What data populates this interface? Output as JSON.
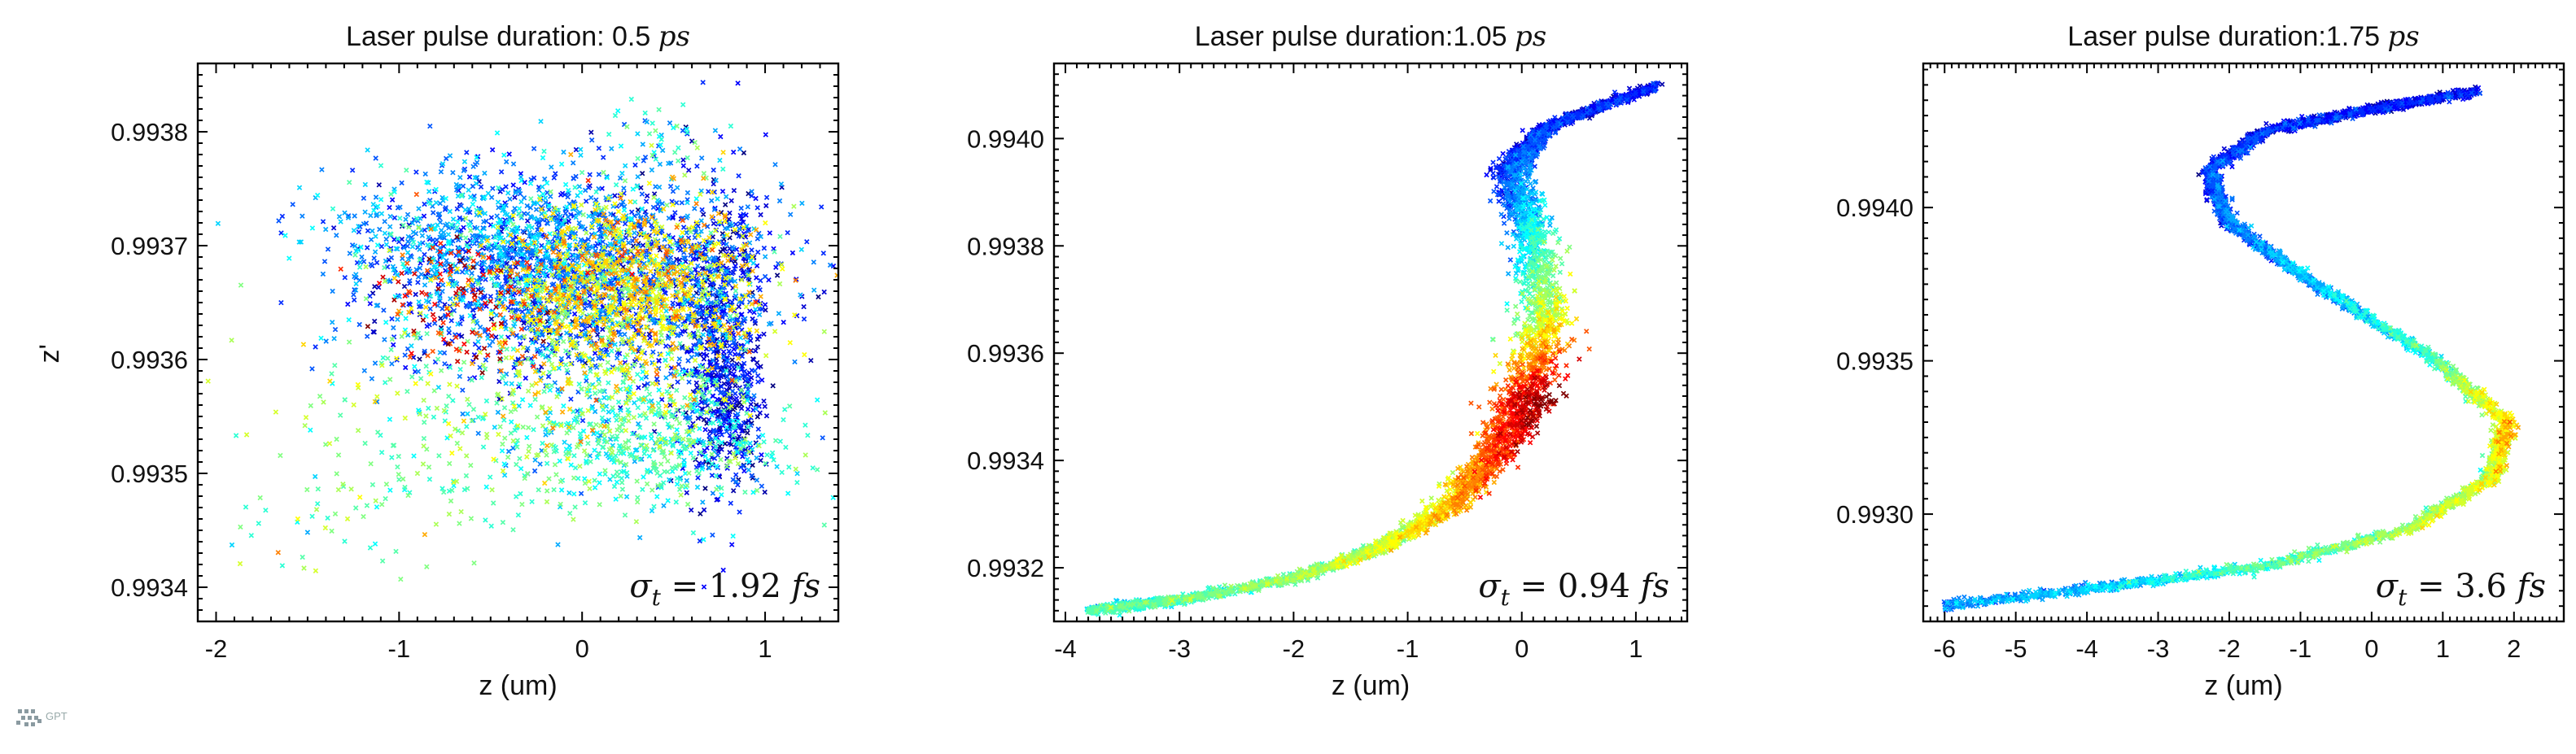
{
  "logo": {
    "text": "GPT"
  },
  "chart_data": [
    {
      "type": "scatter",
      "title": "Laser pulse duration: 0.5",
      "title_unit": "ps",
      "xlabel": "z (um)",
      "ylabel": "z'",
      "xlim": [
        -2.1,
        1.4
      ],
      "ylim": [
        0.99337,
        0.99386
      ],
      "xticks": [
        -2,
        -1,
        0,
        1
      ],
      "xtick_labels": [
        "-2",
        "-1",
        "0",
        "1"
      ],
      "yticks": [
        0.9934,
        0.9935,
        0.9936,
        0.9937,
        0.9938
      ],
      "ytick_labels": [
        "0.9934",
        "0.9935",
        "0.9936",
        "0.9937",
        "0.9938"
      ],
      "annotation": "σ_t = 1.92 fs",
      "annotation_sym": "σ",
      "annotation_sub": "t",
      "annotation_eq": "= 1.92",
      "annotation_unit": "fs",
      "colormap": "jet",
      "clusters": [
        {
          "cx": 0.0,
          "cy": 0.99367,
          "sx": 0.55,
          "sy": 4.5e-05,
          "n": 1900,
          "c": 0.2
        },
        {
          "cx": 0.25,
          "cy": 0.99366,
          "sx": 0.35,
          "sy": 4e-05,
          "n": 1100,
          "c": 0.62
        },
        {
          "cx": -0.55,
          "cy": 0.99371,
          "sx": 0.45,
          "sy": 3e-05,
          "n": 600,
          "c": 0.3
        },
        {
          "cx": 0.75,
          "cy": 0.99362,
          "sx": 0.12,
          "sy": 7e-05,
          "n": 650,
          "c": 0.12
        },
        {
          "cx": -0.6,
          "cy": 0.99365,
          "sx": 0.25,
          "sy": 3e-05,
          "n": 140,
          "c": 0.85
        },
        {
          "cx": -0.5,
          "cy": 0.99357,
          "sx": 0.5,
          "sy": 5e-05,
          "n": 350,
          "c": 0.5
        },
        {
          "cx": 0.35,
          "cy": 0.99353,
          "sx": 0.4,
          "sy": 3e-05,
          "n": 600,
          "c": 0.42
        },
        {
          "cx": -1.3,
          "cy": 0.99347,
          "sx": 0.35,
          "sy": 4e-05,
          "n": 70,
          "c": 0.48
        },
        {
          "cx": 0.8,
          "cy": 0.99355,
          "sx": 0.1,
          "sy": 3e-05,
          "n": 150,
          "c": 0.05
        },
        {
          "cx": 0.45,
          "cy": 0.99379,
          "sx": 0.18,
          "sy": 2e-05,
          "n": 50,
          "c": 0.4
        }
      ]
    },
    {
      "type": "scatter",
      "title": "Laser pulse duration:1.05",
      "title_unit": "ps",
      "xlabel": "z (um)",
      "ylabel": "",
      "xlim": [
        -4.1,
        1.45
      ],
      "ylim": [
        0.9931,
        0.99414
      ],
      "xticks": [
        -4,
        -3,
        -2,
        -1,
        0,
        1
      ],
      "xtick_labels": [
        "-4",
        "-3",
        "-2",
        "-1",
        "0",
        "1"
      ],
      "yticks": [
        0.9932,
        0.9934,
        0.9936,
        0.9938,
        0.994
      ],
      "ytick_labels": [
        "0.9932",
        "0.9934",
        "0.9936",
        "0.9938",
        "0.9940"
      ],
      "annotation": "σ_t = 0.94 fs",
      "annotation_sym": "σ",
      "annotation_sub": "t",
      "annotation_eq": "= 0.94",
      "annotation_unit": "fs",
      "colormap": "jet",
      "curve": {
        "z": [
          -3.8,
          -3.0,
          -2.0,
          -1.2,
          -0.6,
          -0.2,
          0.05,
          0.2,
          0.1,
          -0.1,
          0.2,
          1.2
        ],
        "zp": [
          0.99312,
          0.99314,
          0.99318,
          0.99324,
          0.99332,
          0.99342,
          0.99352,
          0.99366,
          0.99382,
          0.99394,
          0.99402,
          0.9941
        ],
        "width": [
          0.05,
          0.06,
          0.08,
          0.12,
          0.18,
          0.25,
          0.28,
          0.25,
          0.2,
          0.18,
          0.1,
          0.05
        ],
        "color": [
          0.4,
          0.42,
          0.48,
          0.55,
          0.65,
          0.8,
          0.9,
          0.55,
          0.35,
          0.18,
          0.12,
          0.1
        ],
        "n": 4500
      }
    },
    {
      "type": "scatter",
      "title": "Laser pulse duration:1.75",
      "title_unit": "ps",
      "xlabel": "z (um)",
      "ylabel": "",
      "xlim": [
        -6.3,
        2.7
      ],
      "ylim": [
        0.99265,
        0.99447
      ],
      "xticks": [
        -6,
        -5,
        -4,
        -3,
        -2,
        -1,
        0,
        1,
        2
      ],
      "xtick_labels": [
        "-6",
        "-5",
        "-4",
        "-3",
        "-2",
        "-1",
        "0",
        "1",
        "2"
      ],
      "yticks": [
        0.993,
        0.9935,
        0.994
      ],
      "ytick_labels": [
        "0.9930",
        "0.9935",
        "0.9940"
      ],
      "annotation": "σ_t = 3.6 fs",
      "annotation_sym": "σ",
      "annotation_sub": "t",
      "annotation_eq": "= 3.6",
      "annotation_unit": "fs",
      "colormap": "jet",
      "curve": {
        "z": [
          1.5,
          0.0,
          -1.5,
          -2.3,
          -2.0,
          -0.8,
          0.8,
          1.9,
          1.7,
          0.5,
          -1.5,
          -3.5,
          -6.0
        ],
        "zp": [
          0.99438,
          0.99432,
          0.99425,
          0.99412,
          0.99395,
          0.99375,
          0.99352,
          0.9933,
          0.99312,
          0.99295,
          0.99283,
          0.99277,
          0.9927
        ],
        "width": [
          0.04,
          0.08,
          0.12,
          0.14,
          0.13,
          0.12,
          0.13,
          0.16,
          0.14,
          0.12,
          0.1,
          0.07,
          0.05
        ],
        "color": [
          0.1,
          0.1,
          0.12,
          0.15,
          0.2,
          0.28,
          0.4,
          0.62,
          0.55,
          0.5,
          0.42,
          0.3,
          0.25
        ],
        "n": 4000
      }
    }
  ]
}
